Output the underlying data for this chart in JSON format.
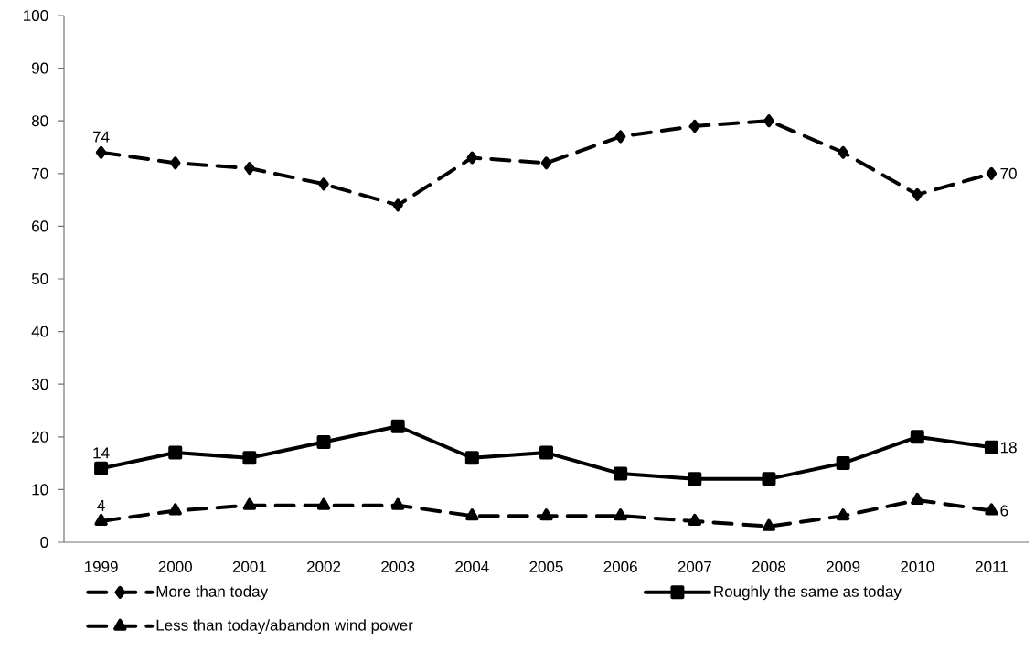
{
  "chart_data": {
    "type": "line",
    "categories": [
      "1999",
      "2000",
      "2001",
      "2002",
      "2003",
      "2004",
      "2005",
      "2006",
      "2007",
      "2008",
      "2009",
      "2010",
      "2011"
    ],
    "series": [
      {
        "name": "More than today",
        "color": "#000000",
        "marker": "diamond",
        "line_style": "dashed",
        "values": [
          74,
          72,
          71,
          68,
          64,
          73,
          72,
          77,
          79,
          80,
          74,
          66,
          70
        ],
        "value_labels": [
          "74",
          null,
          null,
          null,
          null,
          null,
          null,
          null,
          null,
          null,
          null,
          null,
          "70"
        ]
      },
      {
        "name": "Roughly the same as today",
        "color": "#000000",
        "marker": "square",
        "line_style": "solid",
        "values": [
          14,
          17,
          16,
          19,
          22,
          16,
          17,
          13,
          12,
          12,
          15,
          20,
          18
        ],
        "value_labels": [
          "14",
          null,
          null,
          null,
          null,
          null,
          null,
          null,
          null,
          null,
          null,
          null,
          "18"
        ]
      },
      {
        "name": "Less than today/abandon wind power",
        "color": "#000000",
        "marker": "triangle",
        "line_style": "dashed",
        "values": [
          4,
          6,
          7,
          7,
          7,
          5,
          5,
          5,
          4,
          3,
          5,
          8,
          6
        ],
        "value_labels": [
          "4",
          null,
          null,
          null,
          null,
          null,
          null,
          null,
          null,
          null,
          null,
          null,
          "6"
        ]
      }
    ],
    "ylim": [
      0,
      100
    ],
    "yticks": [
      0,
      10,
      20,
      30,
      40,
      50,
      60,
      70,
      80,
      90,
      100
    ],
    "grid": false,
    "legend": "bottom"
  }
}
